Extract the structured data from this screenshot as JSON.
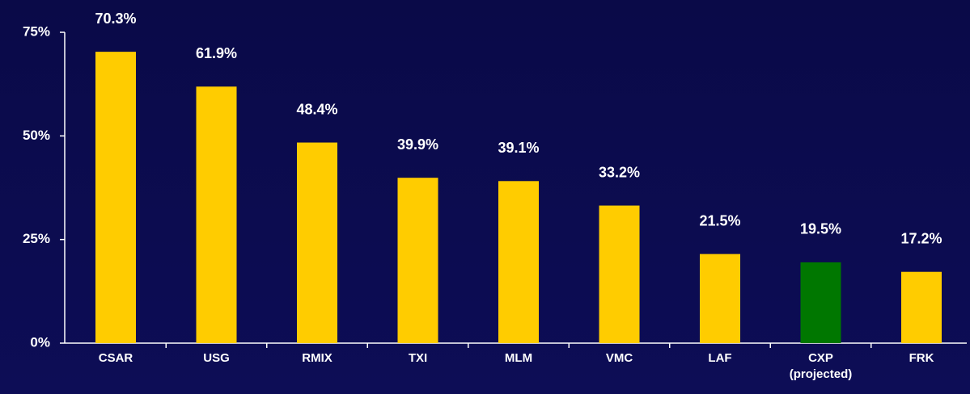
{
  "chart_data": {
    "type": "bar",
    "categories": [
      "CSAR",
      "USG",
      "RMIX",
      "TXI",
      "MLM",
      "VMC",
      "LAF",
      "CXP\n(projected)",
      "FRK"
    ],
    "values": [
      70.3,
      61.9,
      48.4,
      39.9,
      39.1,
      33.2,
      21.5,
      19.5,
      17.2
    ],
    "value_labels": [
      "70.3%",
      "61.9%",
      "48.4%",
      "39.9%",
      "39.1%",
      "33.2%",
      "21.5%",
      "19.5%",
      "17.2%"
    ],
    "colors": [
      "#ffcc00",
      "#ffcc00",
      "#ffcc00",
      "#ffcc00",
      "#ffcc00",
      "#ffcc00",
      "#ffcc00",
      "#007700",
      "#ffcc00"
    ],
    "ylim": [
      0,
      75
    ],
    "yticks": [
      {
        "value": 0,
        "label": "0%"
      },
      {
        "value": 25,
        "label": "25%"
      },
      {
        "value": 50,
        "label": "50%"
      },
      {
        "value": 75,
        "label": "75%"
      }
    ],
    "grid": false
  }
}
